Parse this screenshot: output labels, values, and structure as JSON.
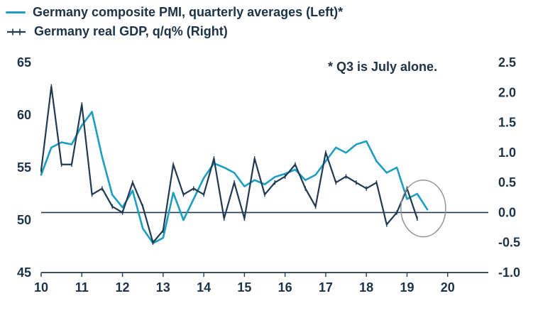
{
  "legend": {
    "items": [
      {
        "label": "Germany composite PMI, quarterly averages (Left)*",
        "color": "#1c9ec3"
      },
      {
        "label": "Germany real GDP, q/q% (Right)",
        "color": "#1f3a52"
      }
    ]
  },
  "annotation": {
    "text": "* Q3 is July alone."
  },
  "colors": {
    "pmi": "#1c9ec3",
    "gdp": "#1f3a52",
    "text": "#1c3347",
    "axis": "#1f3a52",
    "circle": "#8f959b",
    "background": "#ffffff"
  },
  "chart_data": {
    "type": "line",
    "title": "",
    "grid": false,
    "legend_position": "top-left",
    "x_axis": {
      "range": [
        10,
        21
      ],
      "ticks": [
        10,
        11,
        12,
        13,
        14,
        15,
        16,
        17,
        18,
        19,
        20
      ]
    },
    "left_axis": {
      "range": [
        45,
        65
      ],
      "ticks": [
        65,
        60,
        55,
        50,
        45
      ]
    },
    "right_axis": {
      "range": [
        -1.0,
        2.5
      ],
      "ticks": [
        "2.5",
        "2.0",
        "1.5",
        "1.0",
        "0.5",
        "0.0",
        "-0.5",
        "-1.0"
      ]
    },
    "zero_line_right_axis": 0.0,
    "series": [
      {
        "name": "Germany composite PMI, quarterly averages (Left)*",
        "axis": "left",
        "color": "#1c9ec3",
        "markers": false,
        "x": [
          10,
          10.25,
          10.5,
          10.75,
          11,
          11.25,
          11.5,
          11.75,
          12,
          12.25,
          12.5,
          12.75,
          13,
          13.25,
          13.5,
          13.75,
          14,
          14.25,
          14.5,
          14.75,
          15,
          15.25,
          15.5,
          15.75,
          16,
          16.25,
          16.5,
          16.75,
          17,
          17.25,
          17.5,
          17.75,
          18,
          18.25,
          18.5,
          18.75,
          19,
          19.25,
          19.5
        ],
        "values": [
          54.3,
          56.9,
          57.4,
          57.2,
          59.0,
          60.3,
          56.0,
          52.4,
          51.2,
          52.8,
          49.2,
          47.8,
          48.3,
          52.6,
          50.0,
          52.0,
          54.0,
          55.4,
          55.0,
          54.5,
          53.2,
          53.8,
          53.4,
          54.1,
          54.4,
          54.8,
          53.8,
          54.3,
          55.6,
          56.9,
          56.4,
          57.2,
          57.5,
          55.6,
          54.5,
          55.0,
          52.0,
          52.5,
          51.0
        ]
      },
      {
        "name": "Germany real GDP, q/q% (Right)",
        "axis": "right",
        "color": "#1f3a52",
        "markers": true,
        "x": [
          10,
          10.25,
          10.5,
          10.75,
          11,
          11.25,
          11.5,
          11.75,
          12,
          12.25,
          12.5,
          12.75,
          13,
          13.25,
          13.5,
          13.75,
          14,
          14.25,
          14.5,
          14.75,
          15,
          15.25,
          15.5,
          15.75,
          16,
          16.25,
          16.5,
          16.75,
          17,
          17.25,
          17.5,
          17.75,
          18,
          18.25,
          18.5,
          18.75,
          19,
          19.25
        ],
        "values": [
          0.7,
          2.1,
          0.8,
          0.8,
          1.8,
          0.3,
          0.4,
          0.1,
          0.0,
          0.5,
          0.1,
          -0.5,
          -0.3,
          0.8,
          0.3,
          0.4,
          0.3,
          0.9,
          -0.1,
          0.5,
          -0.1,
          0.9,
          0.3,
          0.5,
          0.6,
          0.8,
          0.4,
          0.1,
          1.0,
          0.5,
          0.6,
          0.5,
          0.4,
          0.5,
          -0.2,
          0.0,
          0.4,
          -0.1
        ]
      }
    ],
    "highlight_circle": {
      "x_center": 19.4,
      "y_center_left_axis": 51.1,
      "x_radius_years": 0.55,
      "y_radius_left_units": 2.7
    }
  }
}
